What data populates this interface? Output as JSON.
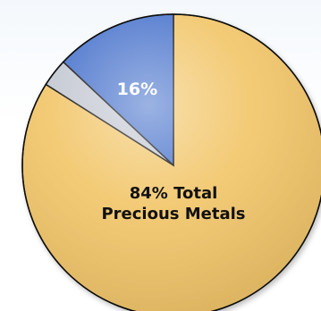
{
  "chart_data": {
    "type": "pie",
    "slices": [
      {
        "label": "84% Total Precious Metals",
        "label_lines": [
          "84% Total",
          "Precious Metals"
        ],
        "value": 84,
        "color": "#f2c66a"
      },
      {
        "label": "",
        "value": 3,
        "color": "#c4c8d2"
      },
      {
        "label": "16%",
        "value": 13,
        "color": "#4a74cc"
      }
    ],
    "label_colors": {
      "dark": "#111111",
      "light": "#ffffff"
    },
    "outline_color": "#111111",
    "title": "",
    "legend": "none"
  }
}
